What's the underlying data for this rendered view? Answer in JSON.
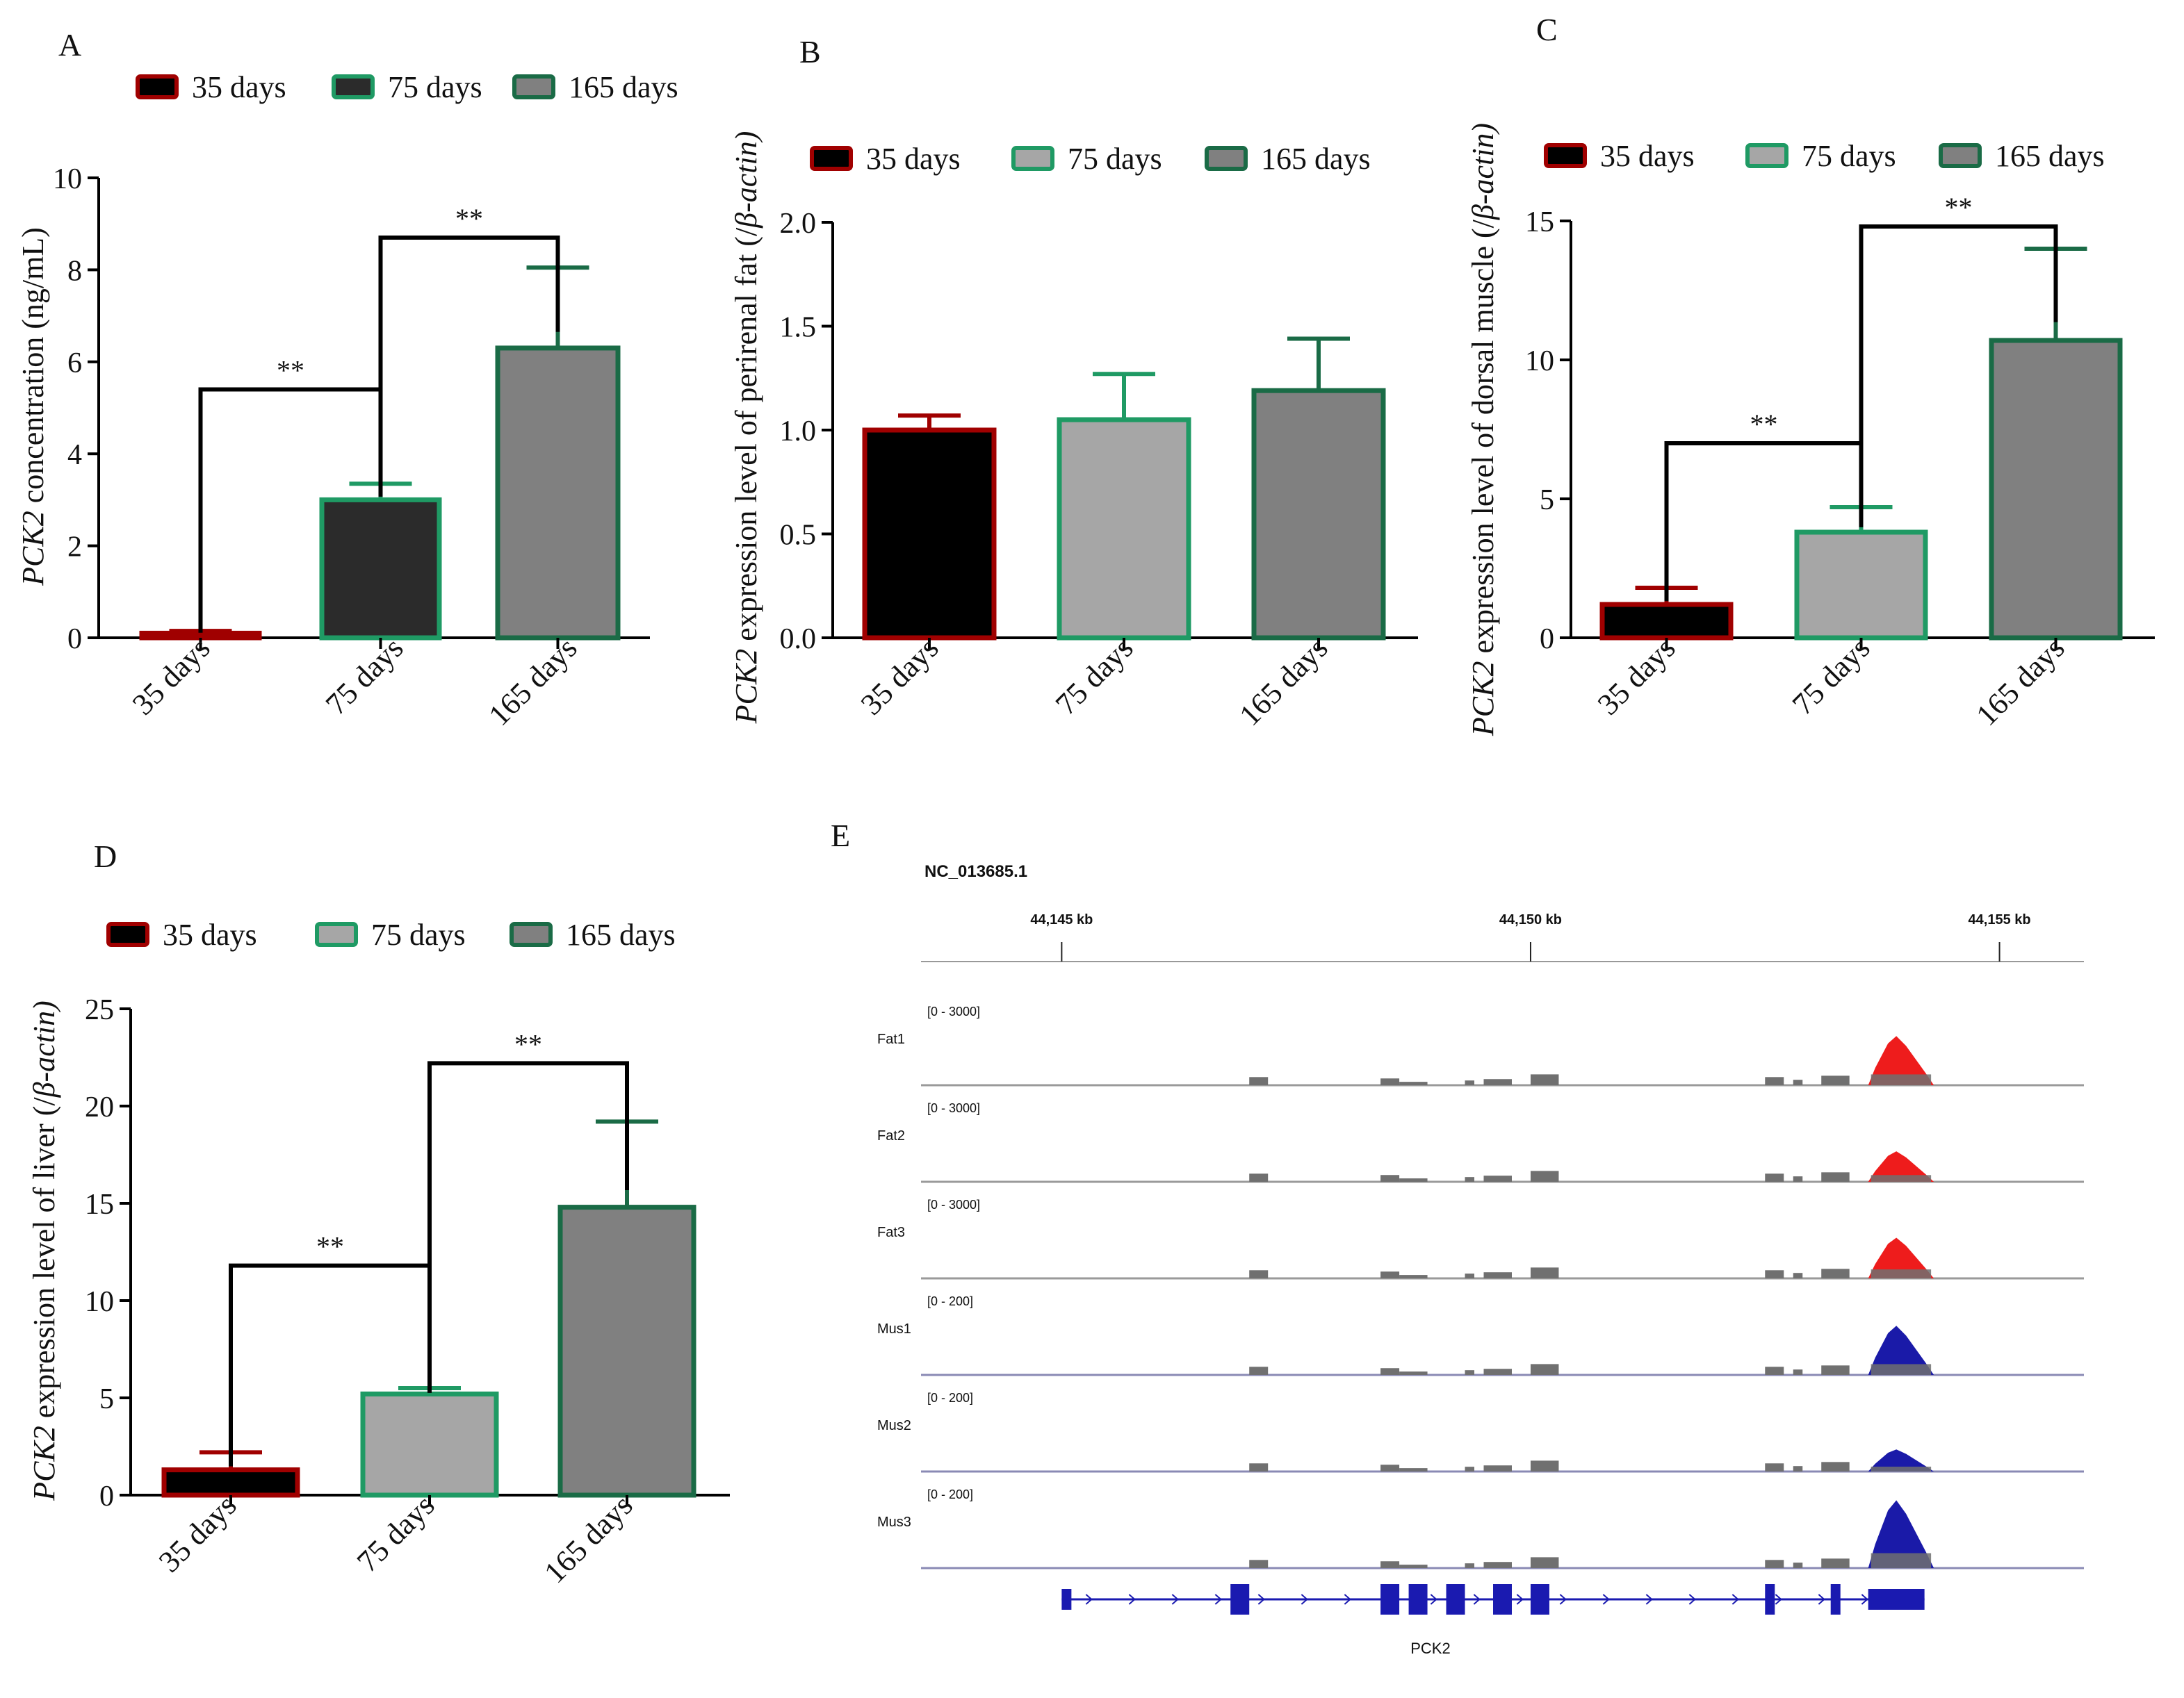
{
  "colors": {
    "c35_fill": "#000000",
    "c35_edge": "#a00000",
    "c75_A_fill": "#2b2b2b",
    "c75_fill": "#a6a6a6",
    "c165_fill": "#808080",
    "green_edge": "#1f9a64",
    "dark_green_edge": "#1a6b46",
    "red_peak": "#ee1c1c",
    "blue_peak": "#1a1aa8",
    "track_gray": "#707070",
    "gene_blue": "#1a1ab0"
  },
  "chart_data": [
    {
      "panel": "A",
      "type": "bar",
      "ylabel_italic": "PCK2",
      "ylabel": " concentration (ng/mL)",
      "categories": [
        "35 days",
        "75 days",
        "165 days"
      ],
      "legend": [
        "35 days",
        "75 days",
        "165 days"
      ],
      "values": [
        0.1,
        3.0,
        6.3
      ],
      "errors": [
        0.05,
        0.35,
        1.75
      ],
      "ylim": [
        0,
        10
      ],
      "yticks": [
        "0",
        "2",
        "4",
        "6",
        "8",
        "10"
      ],
      "significance": [
        {
          "from": 0,
          "to": 1,
          "label": "**",
          "y": 5.4
        },
        {
          "from": 1,
          "to": 2,
          "label": "**",
          "y": 8.7
        }
      ]
    },
    {
      "panel": "B",
      "type": "bar",
      "ylabel_italic": "PCK2",
      "ylabel": " expression level of perirenal fat (/",
      "ylabel_tail": "β-actin)",
      "categories": [
        "35 days",
        "75 days",
        "165 days"
      ],
      "legend": [
        "35 days",
        "75 days",
        "165 days"
      ],
      "values": [
        1.0,
        1.05,
        1.19
      ],
      "errors": [
        0.07,
        0.22,
        0.25
      ],
      "ylim": [
        0,
        2
      ],
      "yticks": [
        "0.0",
        "0.5",
        "1.0",
        "1.5",
        "2.0"
      ],
      "significance": []
    },
    {
      "panel": "C",
      "type": "bar",
      "ylabel_italic": "PCK2",
      "ylabel": " expression level of dorsal muscle (/",
      "ylabel_tail": "β-actin)",
      "categories": [
        "35 days",
        "75 days",
        "165 days"
      ],
      "legend": [
        "35 days",
        "75 days",
        "165 days"
      ],
      "values": [
        1.2,
        3.8,
        10.7
      ],
      "errors": [
        0.6,
        0.9,
        3.3
      ],
      "ylim": [
        0,
        15
      ],
      "yticks": [
        "0",
        "5",
        "10",
        "15"
      ],
      "significance": [
        {
          "from": 0,
          "to": 1,
          "label": "**",
          "y": 7.0
        },
        {
          "from": 1,
          "to": 2,
          "label": "**",
          "y": 14.8
        }
      ]
    },
    {
      "panel": "D",
      "type": "bar",
      "ylabel_italic": "PCK2",
      "ylabel": " expression level of liver (/",
      "ylabel_tail": "β-actin)",
      "categories": [
        "35 days",
        "75 days",
        "165 days"
      ],
      "legend": [
        "35 days",
        "75 days",
        "165 days"
      ],
      "values": [
        1.3,
        5.2,
        14.8
      ],
      "errors": [
        0.9,
        0.3,
        4.4
      ],
      "ylim": [
        0,
        25
      ],
      "yticks": [
        "0",
        "5",
        "10",
        "15",
        "20",
        "25"
      ],
      "significance": [
        {
          "from": 0,
          "to": 1,
          "label": "**",
          "y": 11.8
        },
        {
          "from": 1,
          "to": 2,
          "label": "**",
          "y": 22.2
        }
      ]
    }
  ],
  "panel_labels": [
    "A",
    "B",
    "C",
    "D",
    "E"
  ],
  "genome": {
    "chrom": "NC_013685.1",
    "ruler": [
      {
        "label": "44,145 kb",
        "kb": 44145
      },
      {
        "label": "44,150 kb",
        "kb": 44150
      },
      {
        "label": "44,155 kb",
        "kb": 44155
      }
    ],
    "kb_range": [
      44143.5,
      44155.9
    ],
    "tracks": [
      {
        "name": "Fat1",
        "range": "[0 - 3000]",
        "peak": "red",
        "peak_height": 0.58
      },
      {
        "name": "Fat2",
        "range": "[0 - 3000]",
        "peak": "red",
        "peak_height": 0.36
      },
      {
        "name": "Fat3",
        "range": "[0 - 3000]",
        "peak": "red",
        "peak_height": 0.48
      },
      {
        "name": "Mus1",
        "range": "[0 - 200]",
        "peak": "blue",
        "peak_height": 0.58
      },
      {
        "name": "Mus2",
        "range": "[0 - 200]",
        "peak": "blue",
        "peak_height": 0.26
      },
      {
        "name": "Mus3",
        "range": "[0 - 200]",
        "peak": "blue",
        "peak_height": 0.8
      }
    ],
    "gray_blocks_kb": [
      [
        44147.0,
        44147.2,
        0.12
      ],
      [
        44148.4,
        44148.6,
        0.1
      ],
      [
        44148.6,
        44148.9,
        0.05
      ],
      [
        44149.3,
        44149.4,
        0.07
      ],
      [
        44149.5,
        44149.8,
        0.09
      ],
      [
        44150.0,
        44150.3,
        0.16
      ],
      [
        44152.5,
        44152.7,
        0.12
      ],
      [
        44152.8,
        44152.9,
        0.08
      ],
      [
        44153.1,
        44153.4,
        0.14
      ]
    ],
    "gene_name": "PCK2",
    "gene_exons_kb": [
      [
        44145.0,
        44145.1
      ],
      [
        44146.8,
        44147.0
      ],
      [
        44148.4,
        44148.6
      ],
      [
        44148.7,
        44148.9
      ],
      [
        44149.1,
        44149.3
      ],
      [
        44149.6,
        44149.8
      ],
      [
        44150.0,
        44150.2
      ],
      [
        44152.5,
        44152.6
      ],
      [
        44153.2,
        44153.3
      ],
      [
        44153.6,
        44154.2
      ]
    ],
    "gene_span_kb": [
      44145.0,
      44154.2
    ]
  }
}
